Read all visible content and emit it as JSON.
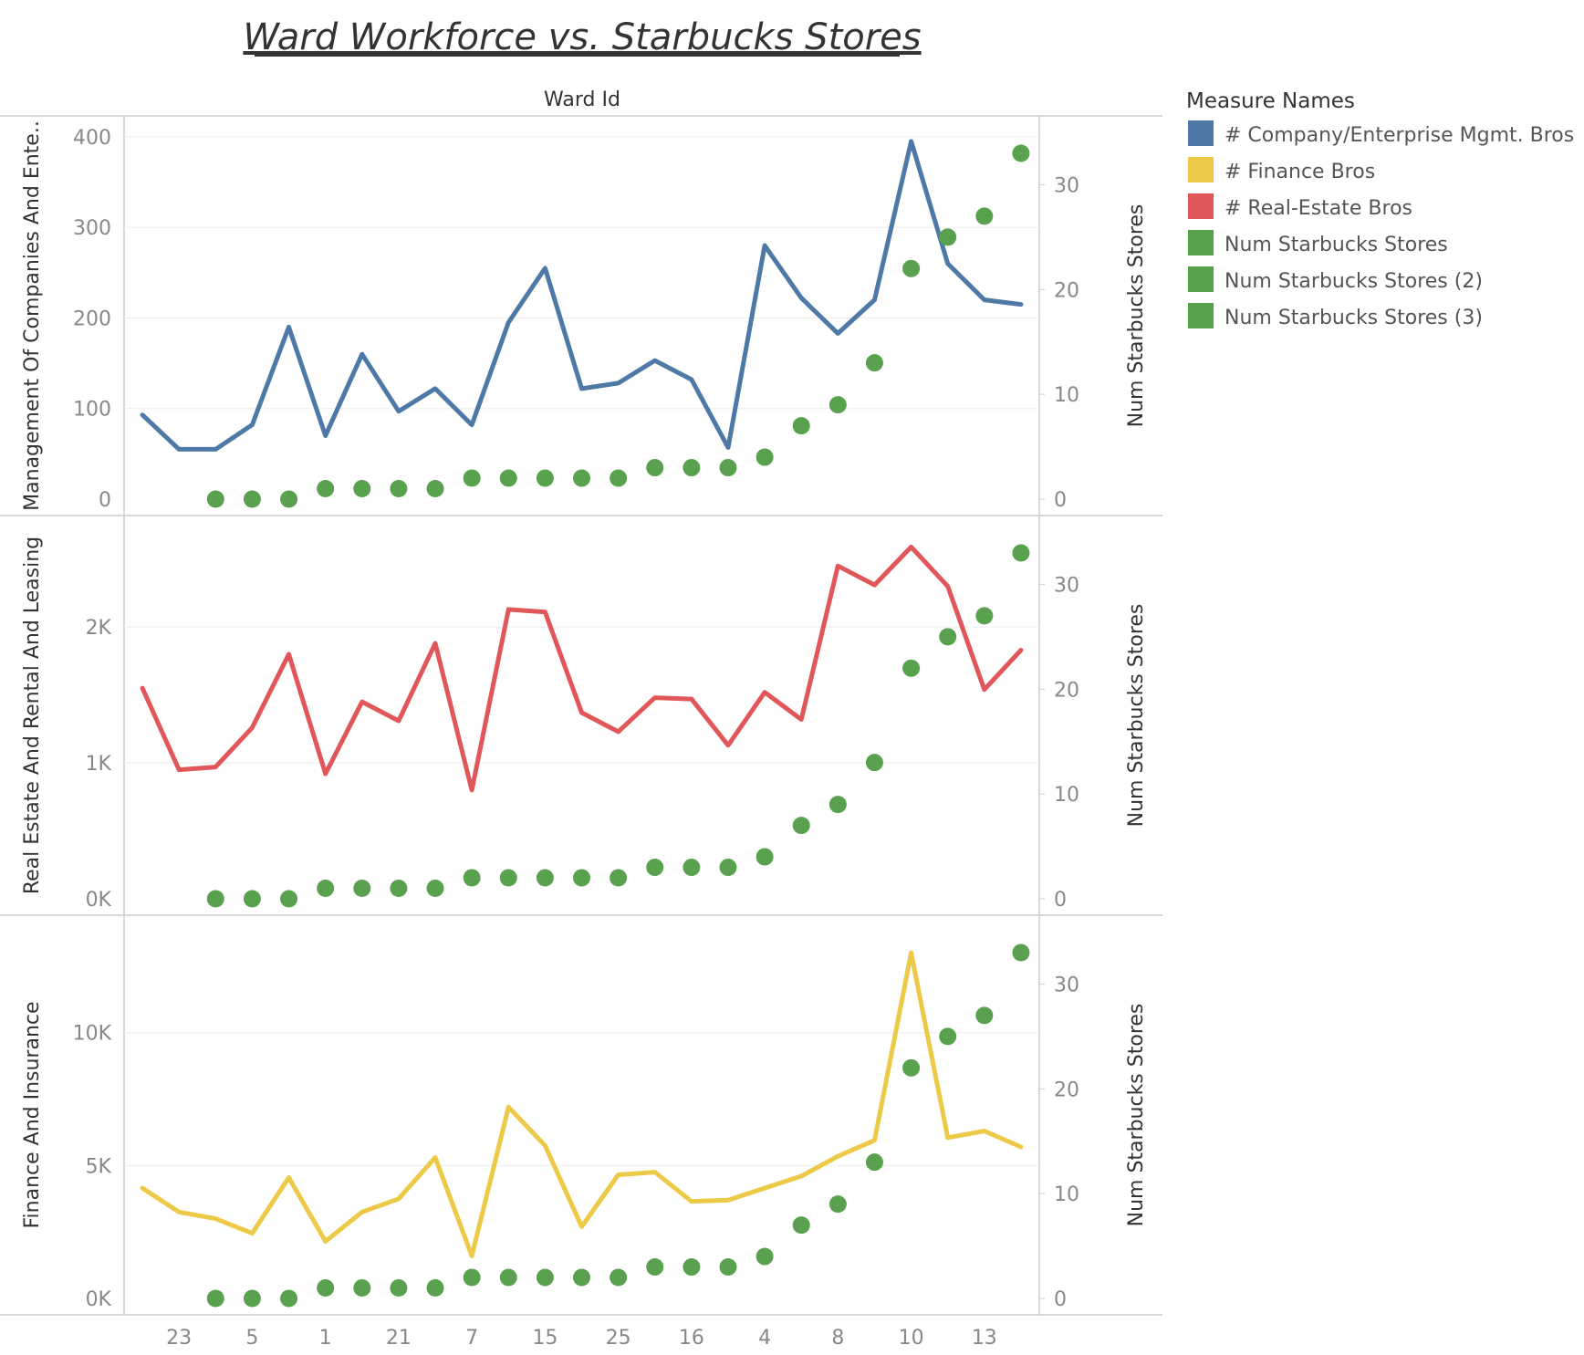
{
  "colors": {
    "company": "#4e79a7",
    "finance": "#edc948",
    "realestate": "#e15759",
    "starbucks": "#59a14f"
  },
  "chart_data": {
    "type": "line",
    "title": "Ward Workforce vs. Starbucks Stores",
    "column_header": "Ward Id",
    "x_tick_labels": [
      "23",
      "5",
      "1",
      "21",
      "7",
      "15",
      "25",
      "16",
      "4",
      "8",
      "10",
      "13"
    ],
    "x_tick_positions": [
      1,
      3,
      5,
      7,
      9,
      11,
      13,
      15,
      17,
      19,
      21,
      23
    ],
    "x_count": 25,
    "starbucks": {
      "name": "Num Starbucks Stores",
      "axis_title": "Num Starbucks Stores",
      "ylim": [
        0,
        35
      ],
      "ticks": [
        0,
        10,
        20,
        30
      ],
      "values": [
        null,
        null,
        0,
        0,
        0,
        1,
        1,
        1,
        1,
        2,
        2,
        2,
        2,
        2,
        3,
        3,
        3,
        4,
        7,
        9,
        13,
        22,
        25,
        27,
        33
      ]
    },
    "panels": [
      {
        "key": "company",
        "axis_title": "Management Of Companies And Ente..",
        "ylim": [
          0,
          405
        ],
        "ticks": [
          0,
          100,
          200,
          300,
          400
        ],
        "tick_labels": [
          "0",
          "100",
          "200",
          "300",
          "400"
        ],
        "values": [
          93,
          55,
          55,
          82,
          190,
          70,
          160,
          97,
          122,
          82,
          195,
          255,
          122,
          128,
          153,
          132,
          57,
          280,
          222,
          183,
          220,
          395,
          260,
          220,
          215
        ]
      },
      {
        "key": "realestate",
        "axis_title": "Real Estate And Rental And Leasing",
        "ylim": [
          0,
          2700
        ],
        "ticks": [
          0,
          1000,
          2000
        ],
        "tick_labels": [
          "0K",
          "1K",
          "2K"
        ],
        "values": [
          1550,
          950,
          970,
          1260,
          1800,
          920,
          1450,
          1310,
          1880,
          800,
          2130,
          2110,
          1370,
          1230,
          1480,
          1470,
          1130,
          1520,
          1320,
          2450,
          2310,
          2590,
          2300,
          1540,
          1830
        ]
      },
      {
        "key": "finance",
        "axis_title": "Finance And Insurance",
        "ylim": [
          0,
          13800
        ],
        "ticks": [
          0,
          5000,
          10000
        ],
        "tick_labels": [
          "0K",
          "5K",
          "10K"
        ],
        "values": [
          4150,
          3250,
          3000,
          2450,
          4550,
          2150,
          3250,
          3750,
          5300,
          1600,
          7200,
          5750,
          2700,
          4650,
          4750,
          3650,
          3700,
          4150,
          4600,
          5350,
          5950,
          13000,
          6050,
          6300,
          5700
        ]
      }
    ]
  },
  "legend": {
    "title": "Measure Names",
    "items": [
      {
        "label": "# Company/Enterprise Mgmt. Bros",
        "color": "#4e79a7"
      },
      {
        "label": "# Finance Bros",
        "color": "#edc948"
      },
      {
        "label": "# Real-Estate Bros",
        "color": "#e15759"
      },
      {
        "label": "Num Starbucks Stores",
        "color": "#59a14f"
      },
      {
        "label": "Num Starbucks Stores (2)",
        "color": "#59a14f"
      },
      {
        "label": "Num Starbucks Stores (3)",
        "color": "#59a14f"
      }
    ]
  }
}
